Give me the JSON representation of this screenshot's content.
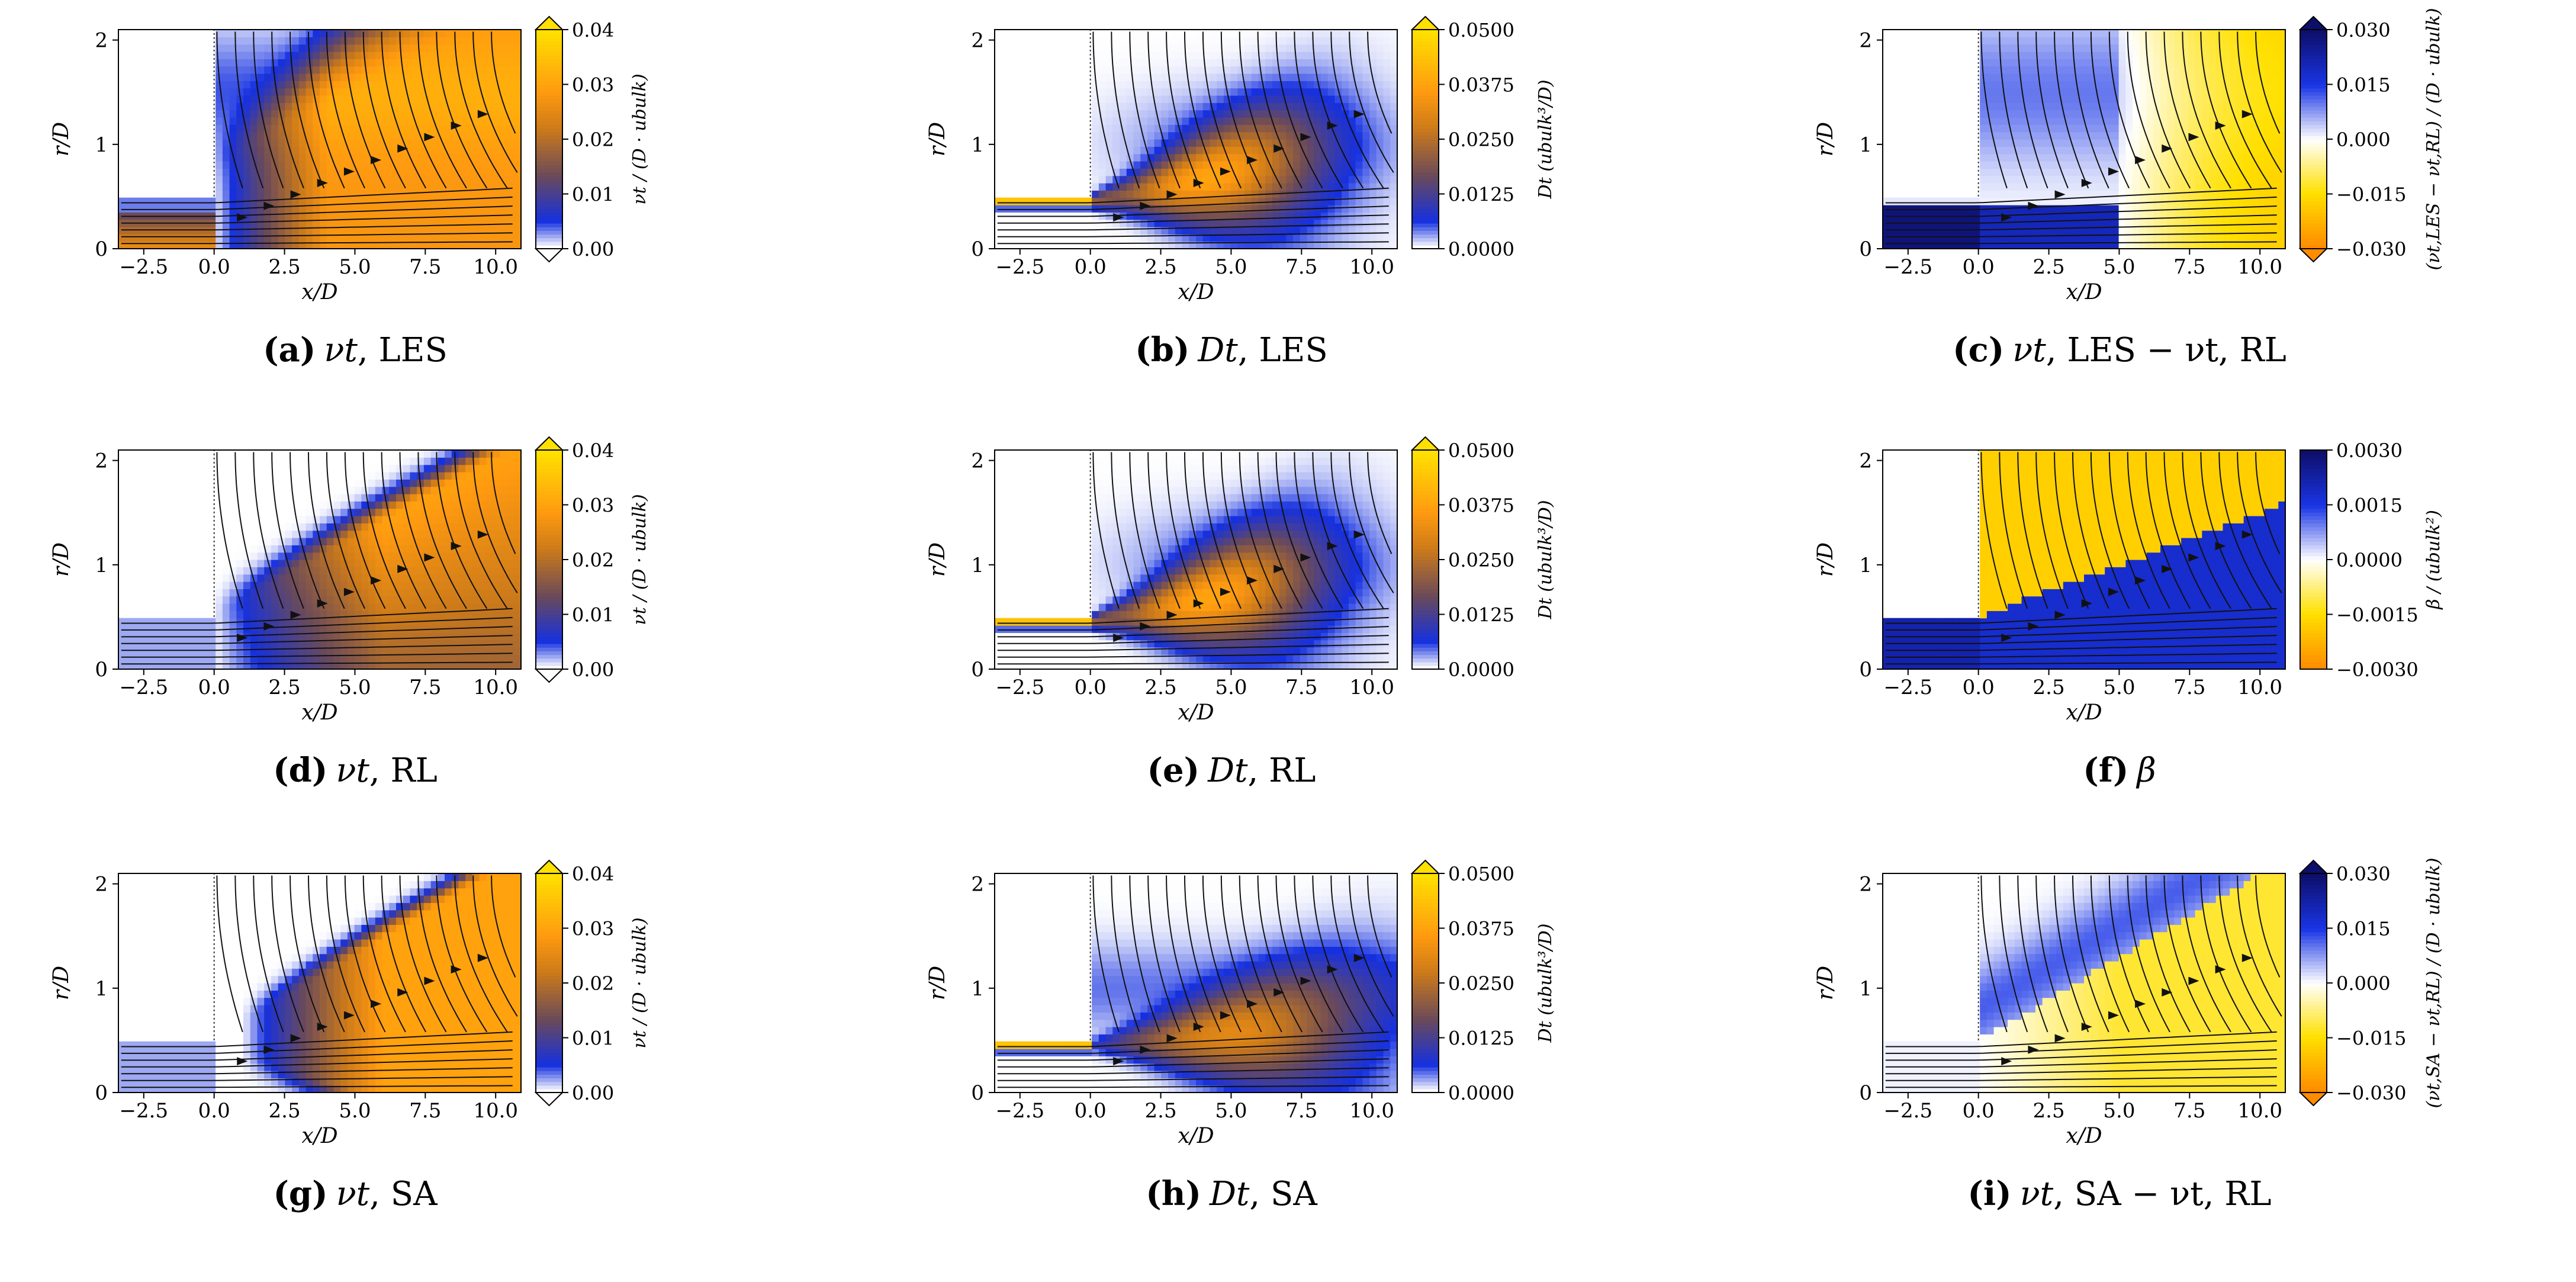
{
  "figure": {
    "grid": "3x3",
    "xlabel": "x/D",
    "ylabel": "r/D",
    "xticks": [
      "−2.5",
      "0.0",
      "2.5",
      "5.0",
      "7.5",
      "10.0"
    ],
    "yticks": [
      "0",
      "1",
      "2"
    ],
    "xlim": [
      -3.4,
      10.9
    ],
    "ylim": [
      0,
      2.1
    ]
  },
  "colormaps": {
    "seq": [
      [
        "#ffffff",
        0
      ],
      [
        "#1530e0",
        0.12
      ],
      [
        "#6a4a5a",
        0.33
      ],
      [
        "#cc7a1a",
        0.55
      ],
      [
        "#ff9a10",
        0.72
      ],
      [
        "#ffe000",
        1
      ]
    ],
    "div": [
      [
        "#ff8c00",
        0
      ],
      [
        "#ffe000",
        0.25
      ],
      [
        "#ffffff",
        0.5
      ],
      [
        "#1a35e6",
        0.75
      ],
      [
        "#0d0f6b",
        1
      ]
    ]
  },
  "chart_data": [
    {
      "id": "a",
      "type": "heatmap",
      "label": "(a)",
      "quantity": "νt",
      "case": "LES",
      "caption_tail": ", LES",
      "cmap": "seq",
      "field": "nu_les",
      "cbar_label": "νt / (D · ubulk)",
      "cbar_ticks": [
        "0.00",
        "0.01",
        "0.02",
        "0.03",
        "0.04"
      ],
      "vmin": 0,
      "vmax": 0.04,
      "extend": "both"
    },
    {
      "id": "b",
      "type": "heatmap",
      "label": "(b)",
      "quantity": "Dt",
      "case": "LES",
      "caption_tail": ", LES",
      "cmap": "seq",
      "field": "dt",
      "cbar_label": "Dt (ubulk³/D)",
      "cbar_ticks": [
        "0.0000",
        "0.0125",
        "0.0250",
        "0.0375",
        "0.0500"
      ],
      "vmin": 0,
      "vmax": 0.05,
      "extend": "max"
    },
    {
      "id": "c",
      "type": "heatmap",
      "label": "(c)",
      "quantity": "νt",
      "case": "LES − νt, RL",
      "caption_tail": ", LES − νt, RL",
      "cmap": "div",
      "field": "diff_les",
      "cbar_label": "(νt,LES − νt,RL) / (D · ubulk)",
      "cbar_ticks": [
        "−0.030",
        "−0.015",
        "0.000",
        "0.015",
        "0.030"
      ],
      "vmin": -0.03,
      "vmax": 0.03,
      "extend": "both"
    },
    {
      "id": "d",
      "type": "heatmap",
      "label": "(d)",
      "quantity": "νt",
      "case": "RL",
      "caption_tail": ", RL",
      "cmap": "seq",
      "field": "nu_rl",
      "cbar_label": "νt / (D · ubulk)",
      "cbar_ticks": [
        "0.00",
        "0.01",
        "0.02",
        "0.03",
        "0.04"
      ],
      "vmin": 0,
      "vmax": 0.04,
      "extend": "both"
    },
    {
      "id": "e",
      "type": "heatmap",
      "label": "(e)",
      "quantity": "Dt",
      "case": "RL",
      "caption_tail": ", RL",
      "cmap": "seq",
      "field": "dt",
      "cbar_label": "Dt (ubulk³/D)",
      "cbar_ticks": [
        "0.0000",
        "0.0125",
        "0.0250",
        "0.0375",
        "0.0500"
      ],
      "vmin": 0,
      "vmax": 0.05,
      "extend": "max"
    },
    {
      "id": "f",
      "type": "heatmap",
      "label": "(f)",
      "quantity": "β",
      "case": "",
      "caption_tail": "",
      "cmap": "div",
      "field": "beta",
      "cbar_label": "β / (ubulk²)",
      "cbar_ticks": [
        "−0.0030",
        "−0.0015",
        "0.0000",
        "0.0015",
        "0.0030"
      ],
      "vmin": -0.003,
      "vmax": 0.003,
      "extend": "none"
    },
    {
      "id": "g",
      "type": "heatmap",
      "label": "(g)",
      "quantity": "νt",
      "case": "SA",
      "caption_tail": ", SA",
      "cmap": "seq",
      "field": "nu_sa",
      "cbar_label": "νt / (D · ubulk)",
      "cbar_ticks": [
        "0.00",
        "0.01",
        "0.02",
        "0.03",
        "0.04"
      ],
      "vmin": 0,
      "vmax": 0.04,
      "extend": "both"
    },
    {
      "id": "h",
      "type": "heatmap",
      "label": "(h)",
      "quantity": "Dt",
      "case": "SA",
      "caption_tail": ", SA",
      "cmap": "seq",
      "field": "dt_sa",
      "cbar_label": "Dt (ubulk³/D)",
      "cbar_ticks": [
        "0.0000",
        "0.0125",
        "0.0250",
        "0.0375",
        "0.0500"
      ],
      "vmin": 0,
      "vmax": 0.05,
      "extend": "max"
    },
    {
      "id": "i",
      "type": "heatmap",
      "label": "(i)",
      "quantity": "νt",
      "case": "SA − νt, RL",
      "caption_tail": ", SA − νt, RL",
      "cmap": "div",
      "field": "diff_sa",
      "cbar_label": "(νt,SA − νt,RL) / (D · ubulk)",
      "cbar_ticks": [
        "−0.030",
        "−0.015",
        "0.000",
        "0.015",
        "0.030"
      ],
      "vmin": -0.03,
      "vmax": 0.03,
      "extend": "both"
    }
  ]
}
